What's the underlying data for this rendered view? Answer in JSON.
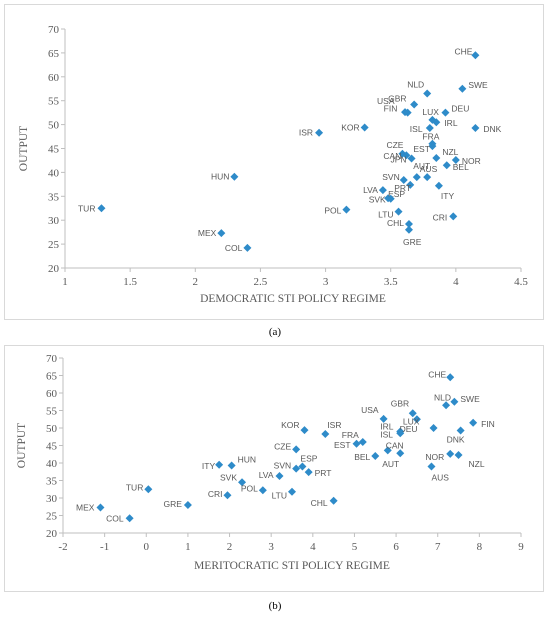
{
  "captions": {
    "a": "(a)",
    "b": "(b)"
  },
  "colors": {
    "marker": "#2e8bc9",
    "axis": "#bfbfbf",
    "text": "#595959"
  },
  "chart_data": [
    {
      "type": "scatter",
      "title": "",
      "xlabel": "DEMOCRATIC STI POLICY REGIME",
      "ylabel": "OUTPUT",
      "xlim": [
        1,
        4.5
      ],
      "ylim": [
        20,
        70
      ],
      "xticks": [
        1,
        1.5,
        2,
        2.5,
        3,
        3.5,
        4,
        4.5
      ],
      "yticks": [
        20,
        25,
        30,
        35,
        40,
        45,
        50,
        55,
        60,
        65,
        70
      ],
      "xtick_labels": [
        "1",
        "1.5",
        "2",
        "2.5",
        "3",
        "3.5",
        "4",
        "4.5"
      ],
      "ytick_labels": [
        "20",
        "25",
        "30",
        "35",
        "40",
        "45",
        "50",
        "55",
        "60",
        "65",
        "70"
      ],
      "grid": false,
      "points": [
        {
          "label": "CHE",
          "x": 4.15,
          "y": 64.5
        },
        {
          "label": "SWE",
          "x": 4.05,
          "y": 57.5
        },
        {
          "label": "NLD",
          "x": 3.78,
          "y": 56.5
        },
        {
          "label": "GBR",
          "x": 3.68,
          "y": 54.2
        },
        {
          "label": "FIN",
          "x": 3.63,
          "y": 52.5
        },
        {
          "label": "USA",
          "x": 3.61,
          "y": 52.6
        },
        {
          "label": "LUX",
          "x": 3.82,
          "y": 51.0
        },
        {
          "label": "DEU",
          "x": 3.92,
          "y": 52.5
        },
        {
          "label": "ISR",
          "x": 2.95,
          "y": 48.3
        },
        {
          "label": "KOR",
          "x": 3.3,
          "y": 49.4
        },
        {
          "label": "ISL",
          "x": 3.8,
          "y": 49.3
        },
        {
          "label": "IRL",
          "x": 3.85,
          "y": 50.5
        },
        {
          "label": "DNK",
          "x": 4.15,
          "y": 49.3
        },
        {
          "label": "FRA",
          "x": 3.82,
          "y": 46.0
        },
        {
          "label": "CZE",
          "x": 3.59,
          "y": 43.9
        },
        {
          "label": "EST",
          "x": 3.82,
          "y": 45.5
        },
        {
          "label": "CAN",
          "x": 3.62,
          "y": 43.6
        },
        {
          "label": "NZL",
          "x": 3.85,
          "y": 43.0
        },
        {
          "label": "NOR",
          "x": 4.0,
          "y": 42.6
        },
        {
          "label": "JPN",
          "x": 3.66,
          "y": 42.9
        },
        {
          "label": "AUT",
          "x": 3.78,
          "y": 39.0
        },
        {
          "label": "AUS",
          "x": 3.7,
          "y": 39.0
        },
        {
          "label": "BEL",
          "x": 3.93,
          "y": 41.5
        },
        {
          "label": "HUN",
          "x": 2.3,
          "y": 39.1
        },
        {
          "label": "SVN",
          "x": 3.6,
          "y": 38.4
        },
        {
          "label": "PRT",
          "x": 3.65,
          "y": 37.4
        },
        {
          "label": "ITY",
          "x": 3.87,
          "y": 37.2
        },
        {
          "label": "LVA",
          "x": 3.44,
          "y": 36.3
        },
        {
          "label": "ESP",
          "x": 3.48,
          "y": 34.6
        },
        {
          "label": "SVK",
          "x": 3.5,
          "y": 34.5
        },
        {
          "label": "TUR",
          "x": 1.28,
          "y": 32.5
        },
        {
          "label": "POL",
          "x": 3.16,
          "y": 32.2
        },
        {
          "label": "LTU",
          "x": 3.56,
          "y": 31.8
        },
        {
          "label": "CRI",
          "x": 3.98,
          "y": 30.8
        },
        {
          "label": "CHL",
          "x": 3.64,
          "y": 29.2
        },
        {
          "label": "GRE",
          "x": 3.64,
          "y": 28.0
        },
        {
          "label": "MEX",
          "x": 2.2,
          "y": 27.3
        },
        {
          "label": "COL",
          "x": 2.4,
          "y": 24.2
        }
      ]
    },
    {
      "type": "scatter",
      "title": "",
      "xlabel": "MERITOCRATIC STI POLICY REGIME",
      "ylabel": "OUTPUT",
      "xlim": [
        -2,
        9
      ],
      "ylim": [
        20,
        70
      ],
      "xticks": [
        -2,
        -1,
        0,
        1,
        2,
        3,
        4,
        5,
        6,
        7,
        8,
        9
      ],
      "yticks": [
        20,
        25,
        30,
        35,
        40,
        45,
        50,
        55,
        60,
        65,
        70
      ],
      "xtick_labels": [
        "-2",
        "-1",
        "0",
        "1",
        "2",
        "3",
        "4",
        "5",
        "6",
        "7",
        "8",
        "9"
      ],
      "ytick_labels": [
        "20",
        "25",
        "30",
        "35",
        "40",
        "45",
        "50",
        "55",
        "60",
        "65",
        "70"
      ],
      "grid": false,
      "points": [
        {
          "label": "CHE",
          "x": 7.3,
          "y": 64.5
        },
        {
          "label": "NLD",
          "x": 7.2,
          "y": 56.5
        },
        {
          "label": "SWE",
          "x": 7.4,
          "y": 57.5
        },
        {
          "label": "GBR",
          "x": 6.4,
          "y": 54.2
        },
        {
          "label": "USA",
          "x": 5.7,
          "y": 52.6
        },
        {
          "label": "LUX",
          "x": 6.5,
          "y": 52.5
        },
        {
          "label": "FIN",
          "x": 7.85,
          "y": 51.5
        },
        {
          "label": "IRL",
          "x": 6.1,
          "y": 49.0
        },
        {
          "label": "DEU",
          "x": 6.9,
          "y": 50.0
        },
        {
          "label": "KOR",
          "x": 3.8,
          "y": 49.4
        },
        {
          "label": "ISR",
          "x": 4.3,
          "y": 48.3
        },
        {
          "label": "ISL",
          "x": 6.1,
          "y": 48.5
        },
        {
          "label": "DNK",
          "x": 7.55,
          "y": 49.3
        },
        {
          "label": "FRA",
          "x": 5.2,
          "y": 46.0
        },
        {
          "label": "EST",
          "x": 5.05,
          "y": 45.5
        },
        {
          "label": "CZE",
          "x": 3.6,
          "y": 43.9
        },
        {
          "label": "CAN",
          "x": 5.8,
          "y": 43.6
        },
        {
          "label": "NOR",
          "x": 7.3,
          "y": 42.6
        },
        {
          "label": "NZL",
          "x": 7.5,
          "y": 42.3
        },
        {
          "label": "BEL",
          "x": 5.5,
          "y": 42.0
        },
        {
          "label": "AUT",
          "x": 6.1,
          "y": 42.8
        },
        {
          "label": "AUS",
          "x": 6.85,
          "y": 39.0
        },
        {
          "label": "HUN",
          "x": 2.05,
          "y": 39.3
        },
        {
          "label": "ITY",
          "x": 1.75,
          "y": 39.5
        },
        {
          "label": "ESP",
          "x": 3.75,
          "y": 39.0
        },
        {
          "label": "SVN",
          "x": 3.6,
          "y": 38.4
        },
        {
          "label": "PRT",
          "x": 3.9,
          "y": 37.4
        },
        {
          "label": "LVA",
          "x": 3.2,
          "y": 36.3
        },
        {
          "label": "SVK",
          "x": 2.3,
          "y": 34.5
        },
        {
          "label": "TUR",
          "x": 0.05,
          "y": 32.5
        },
        {
          "label": "POL",
          "x": 2.8,
          "y": 32.2
        },
        {
          "label": "LTU",
          "x": 3.5,
          "y": 31.8
        },
        {
          "label": "CRI",
          "x": 1.95,
          "y": 30.8
        },
        {
          "label": "CHL",
          "x": 4.5,
          "y": 29.2
        },
        {
          "label": "GRE",
          "x": 1.0,
          "y": 28.0
        },
        {
          "label": "MEX",
          "x": -1.1,
          "y": 27.3
        },
        {
          "label": "COL",
          "x": -0.4,
          "y": 24.2
        }
      ]
    }
  ]
}
